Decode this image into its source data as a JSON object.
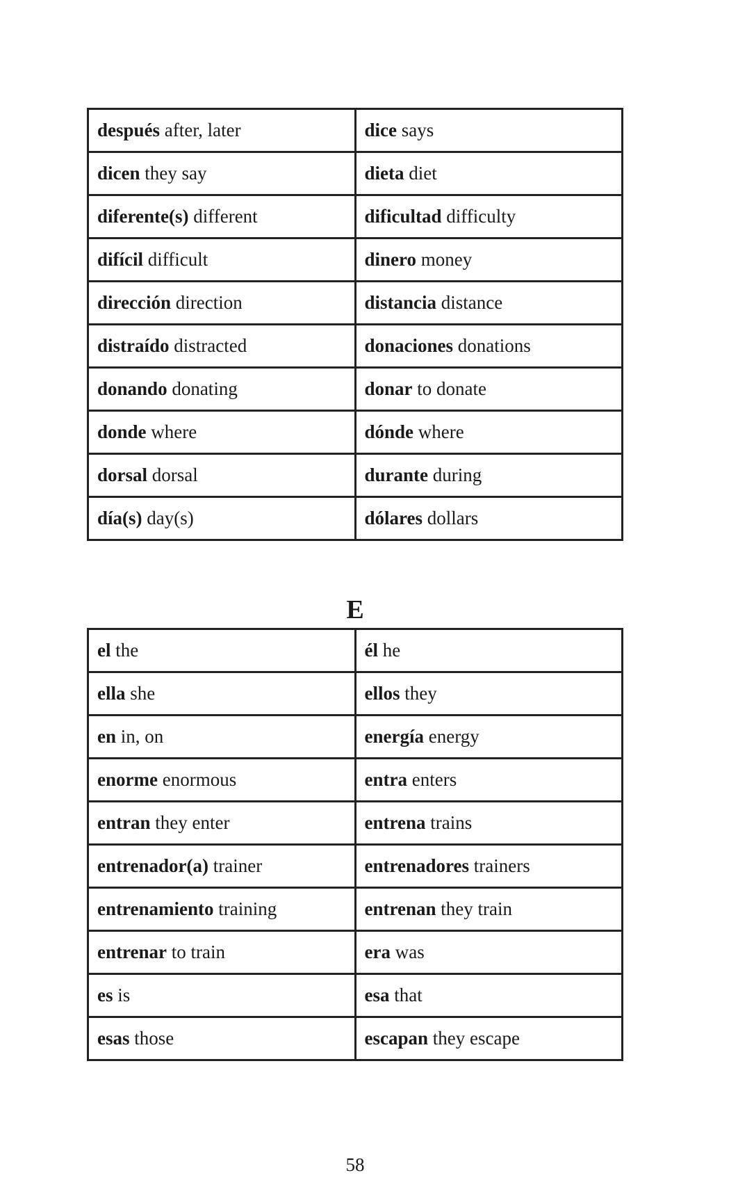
{
  "table_d": [
    [
      {
        "es": "después",
        "en": "after, later"
      },
      {
        "es": "dice",
        "en": "says"
      }
    ],
    [
      {
        "es": "dicen",
        "en": "they say"
      },
      {
        "es": "dieta",
        "en": "diet"
      }
    ],
    [
      {
        "es": "diferente(s)",
        "en": "different"
      },
      {
        "es": "dificultad",
        "en": "difficulty"
      }
    ],
    [
      {
        "es": "difícil",
        "en": "difficult"
      },
      {
        "es": "dinero",
        "en": "money"
      }
    ],
    [
      {
        "es": "dirección",
        "en": "direction"
      },
      {
        "es": "distancia",
        "en": "distance"
      }
    ],
    [
      {
        "es": "distraído",
        "en": "distracted"
      },
      {
        "es": "donaciones",
        "en": "donations"
      }
    ],
    [
      {
        "es": "donando",
        "en": "donating"
      },
      {
        "es": "donar",
        "en": "to donate"
      }
    ],
    [
      {
        "es": "donde",
        "en": "where"
      },
      {
        "es": "dónde",
        "en": "where"
      }
    ],
    [
      {
        "es": "dorsal",
        "en": "dorsal"
      },
      {
        "es": "durante",
        "en": "during"
      }
    ],
    [
      {
        "es": "día(s)",
        "en": "day(s)"
      },
      {
        "es": "dólares",
        "en": "dollars"
      }
    ]
  ],
  "section_letter": "E",
  "table_e": [
    [
      {
        "es": "el",
        "en": "the"
      },
      {
        "es": "él",
        "en": "he"
      }
    ],
    [
      {
        "es": "ella",
        "en": "she"
      },
      {
        "es": "ellos",
        "en": "they"
      }
    ],
    [
      {
        "es": "en",
        "en": "in, on"
      },
      {
        "es": "energía",
        "en": "energy"
      }
    ],
    [
      {
        "es": "enorme",
        "en": "enormous"
      },
      {
        "es": "entra",
        "en": "enters"
      }
    ],
    [
      {
        "es": "entran",
        "en": "they enter"
      },
      {
        "es": "entrena",
        "en": "trains"
      }
    ],
    [
      {
        "es": "entrenador(a)",
        "en": "trainer"
      },
      {
        "es": "entrenadores",
        "en": "trainers"
      }
    ],
    [
      {
        "es": "entrenamiento",
        "en": "training"
      },
      {
        "es": "entrenan",
        "en": "they train"
      }
    ],
    [
      {
        "es": "entrenar",
        "en": "to train"
      },
      {
        "es": "era",
        "en": "was"
      }
    ],
    [
      {
        "es": "es",
        "en": "is"
      },
      {
        "es": "esa",
        "en": "that"
      }
    ],
    [
      {
        "es": "esas",
        "en": "those"
      },
      {
        "es": "escapan",
        "en": "they escape"
      }
    ]
  ],
  "page_number": "58"
}
